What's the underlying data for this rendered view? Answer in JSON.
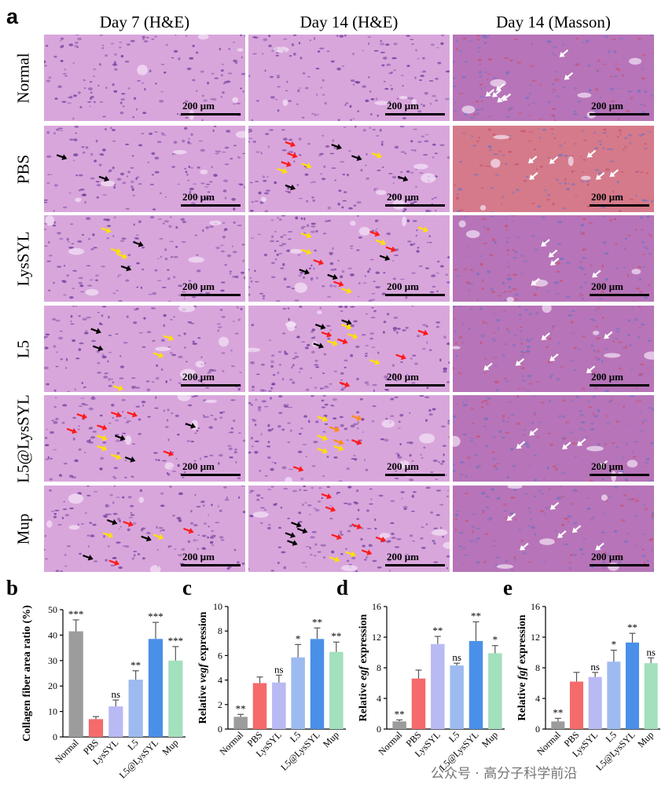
{
  "panel_a": {
    "letter": "a",
    "columns": [
      "Day 7 (H&E)",
      "Day 14 (H&E)",
      "Day 14 (Masson)"
    ],
    "rows": [
      "Normal",
      "PBS",
      "LysSYL",
      "L5",
      "L5@LysSYL",
      "Mup"
    ],
    "scale_bar_label": "200 μm"
  },
  "colors": {
    "he_background": "#d9a6dc",
    "he_nuclei": "#6a3a9a",
    "masson_red": "#c8506e",
    "masson_blue": "#6f72c4",
    "arrow_black": "#000000",
    "arrow_red": "#ff1a1a",
    "arrow_yellow": "#ffe000",
    "arrow_orange": "#ff8c1a",
    "arrow_white": "#ffffff"
  },
  "chart_data": [
    {
      "panel": "b",
      "type": "bar",
      "ylabel": "Collagen fiber area ratio (%)",
      "ylim": [
        0,
        50
      ],
      "yticks": [
        0,
        10,
        20,
        30,
        40,
        50
      ],
      "categories": [
        "Normal",
        "PBS",
        "LysSYL",
        "L5",
        "L5@LysSYL",
        "Mup"
      ],
      "values": [
        41.5,
        7,
        12,
        22.5,
        38.5,
        30
      ],
      "errors": [
        4.5,
        1,
        2.5,
        3.5,
        6.5,
        5.5
      ],
      "significance": [
        "***",
        "",
        "ns",
        "**",
        "***",
        "***"
      ],
      "bar_colors": [
        "#9c9c9c",
        "#f56a6a",
        "#b9b9f4",
        "#9dbbf0",
        "#4a90e8",
        "#a3e0bd"
      ]
    },
    {
      "panel": "c",
      "type": "bar",
      "ylabel": [
        "Relative ",
        "vegf",
        " expression"
      ],
      "ylim": [
        0,
        10
      ],
      "yticks": [
        0,
        2,
        4,
        6,
        8,
        10
      ],
      "categories": [
        "Normal",
        "PBS",
        "LysSYL",
        "L5",
        "L5@LysSYL",
        "Mup"
      ],
      "values": [
        1.0,
        3.75,
        3.8,
        5.85,
        7.35,
        6.3
      ],
      "errors": [
        0.2,
        0.5,
        0.6,
        1.05,
        0.9,
        0.8
      ],
      "significance": [
        "**",
        "",
        "ns",
        "*",
        "**",
        "**"
      ],
      "bar_colors": [
        "#9c9c9c",
        "#f56a6a",
        "#b9b9f4",
        "#9dbbf0",
        "#4a90e8",
        "#a3e0bd"
      ]
    },
    {
      "panel": "d",
      "type": "bar",
      "ylabel": [
        "Relative ",
        "egf",
        " expression"
      ],
      "ylim": [
        0,
        16
      ],
      "yticks": [
        0,
        4,
        8,
        12,
        16
      ],
      "categories": [
        "Normal",
        "PBS",
        "LysSYL",
        "L5",
        "L5@LysSYL",
        "Mup"
      ],
      "values": [
        1.0,
        6.6,
        11.1,
        8.3,
        11.5,
        9.9
      ],
      "errors": [
        0.2,
        1.1,
        1.0,
        0.3,
        2.5,
        1.0
      ],
      "significance": [
        "**",
        "",
        "**",
        "ns",
        "**",
        "*"
      ],
      "bar_colors": [
        "#9c9c9c",
        "#f56a6a",
        "#b9b9f4",
        "#9dbbf0",
        "#4a90e8",
        "#a3e0bd"
      ]
    },
    {
      "panel": "e",
      "type": "bar",
      "ylabel": [
        "Relative ",
        "fgf",
        " expression"
      ],
      "ylim": [
        0,
        16
      ],
      "yticks": [
        0,
        4,
        8,
        12,
        16
      ],
      "categories": [
        "Normal",
        "PBS",
        "LysSYL",
        "L5",
        "L5@LysSYL",
        "Mup"
      ],
      "values": [
        1.0,
        6.2,
        6.8,
        8.8,
        11.3,
        8.6
      ],
      "errors": [
        0.4,
        1.2,
        0.6,
        1.5,
        1.2,
        0.7
      ],
      "significance": [
        "**",
        "",
        "ns",
        "*",
        "**",
        "ns"
      ],
      "bar_colors": [
        "#9c9c9c",
        "#f56a6a",
        "#b9b9f4",
        "#9dbbf0",
        "#4a90e8",
        "#a3e0bd"
      ]
    }
  ],
  "watermark": "公众号 · 高分子科学前沿"
}
